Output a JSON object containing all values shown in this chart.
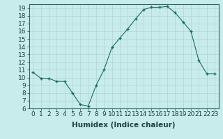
{
  "x": [
    0,
    1,
    2,
    3,
    4,
    5,
    6,
    7,
    8,
    9,
    10,
    11,
    12,
    13,
    14,
    15,
    16,
    17,
    18,
    19,
    20,
    21,
    22,
    23
  ],
  "y": [
    10.7,
    9.9,
    9.9,
    9.5,
    9.5,
    8.0,
    6.5,
    6.3,
    9.0,
    11.0,
    13.9,
    15.1,
    16.3,
    17.6,
    18.8,
    19.1,
    19.1,
    19.2,
    18.4,
    17.2,
    16.0,
    12.2,
    10.5,
    10.5
  ],
  "line_color": "#1a6b5e",
  "marker": "+",
  "bg_color": "#c8ecec",
  "grid_color": "#b0d4d4",
  "xlabel": "Humidex (Indice chaleur)",
  "xlim": [
    -0.5,
    23.5
  ],
  "ylim": [
    6,
    19.5
  ],
  "yticks": [
    6,
    7,
    8,
    9,
    10,
    11,
    12,
    13,
    14,
    15,
    16,
    17,
    18,
    19
  ],
  "xticks": [
    0,
    1,
    2,
    3,
    4,
    5,
    6,
    7,
    8,
    9,
    10,
    11,
    12,
    13,
    14,
    15,
    16,
    17,
    18,
    19,
    20,
    21,
    22,
    23
  ],
  "tick_label_fontsize": 6.5,
  "xlabel_fontsize": 7.5,
  "border_color": "#336655"
}
